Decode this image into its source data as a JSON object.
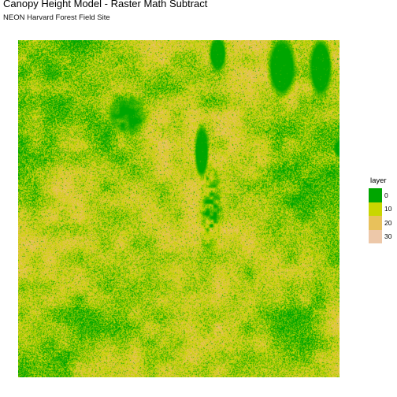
{
  "chart_data": {
    "type": "heatmap",
    "title": "Canopy Height Model - Raster Math Subtract",
    "subtitle": "NEON Harvard Forest Field Site",
    "xlabel": "",
    "ylabel": "",
    "legend": {
      "title": "layer",
      "position": "right",
      "entries": [
        {
          "label": "0",
          "value": 0,
          "color": "#00a600"
        },
        {
          "label": "10",
          "value": 10,
          "color": "#c9d600"
        },
        {
          "label": "20",
          "value": 20,
          "color": "#e8c15b"
        },
        {
          "label": "30",
          "value": 30,
          "color": "#edc8a9"
        }
      ]
    },
    "value_range": [
      0,
      38
    ],
    "grid": false,
    "colormap": "terrain",
    "features": [
      {
        "name": "low canopy patch upper-left",
        "value": 0
      },
      {
        "name": "low canopy clearing north edge",
        "value": 0
      },
      {
        "name": "low canopy corridor center",
        "value": 2
      },
      {
        "name": "tall forest background",
        "value": 22
      }
    ]
  }
}
